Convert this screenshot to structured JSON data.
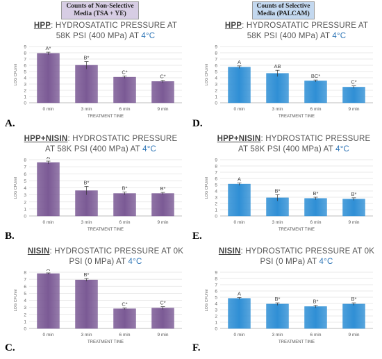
{
  "headers": {
    "left": "Counts of Non-Selective Media (TSA + YE)",
    "right": "Counts of Selective Media (PALCAM)"
  },
  "colors": {
    "purple": "#7b5a95",
    "blue": "#2f8fd5"
  },
  "chart_data": [
    {
      "type": "bar",
      "panel_label": "A.",
      "title_bold": "HPP",
      "title_rest": ": HYDROSATATIC PRESSURE AT 58K PSI (400 MPa) AT",
      "title_temp": "4°C",
      "categories": [
        "0 min",
        "3 min",
        "6 min",
        "9 min"
      ],
      "values": [
        7.9,
        6.0,
        4.1,
        3.4
      ],
      "errors": [
        0.2,
        0.6,
        0.2,
        0.2
      ],
      "bar_labels": [
        "A*",
        "B*",
        "C*",
        "C*"
      ],
      "xlabel": "TREATMENT TIME",
      "ylabel": "LOG CFU/ml",
      "ylim": [
        0,
        9
      ],
      "color": "#7b5a95"
    },
    {
      "type": "bar",
      "panel_label": "D.",
      "title_bold": "HPP",
      "title_rest": ": HYDROSATATIC PRESSURE AT 58K PSI (400 MPa) AT",
      "title_temp": "4°C",
      "categories": [
        "0 min",
        "3 min",
        "6 min",
        "9 min"
      ],
      "values": [
        5.7,
        4.7,
        3.5,
        2.5
      ],
      "errors": [
        0.2,
        0.5,
        0.15,
        0.2
      ],
      "bar_labels": [
        "A",
        "AB",
        "BC*",
        "C*"
      ],
      "xlabel": "TREATMENT TIME",
      "ylabel": "LOG CFU/ml",
      "ylim": [
        0,
        9
      ],
      "color": "#2f8fd5"
    },
    {
      "type": "bar",
      "panel_label": "B.",
      "title_bold": "HPP+NISIN",
      "title_rest": ": HYDROSTATIC PRESSURE AT 58K PSI (400 MPa) AT",
      "title_temp": "4°C",
      "categories": [
        "0 min",
        "3 min",
        "6 min",
        "9 min"
      ],
      "values": [
        7.6,
        3.6,
        3.2,
        3.2
      ],
      "errors": [
        0.2,
        0.6,
        0.2,
        0.15
      ],
      "bar_labels": [
        "A",
        "B*",
        "B*",
        "B*"
      ],
      "xlabel": "TREATMENT TIME",
      "ylabel": "LOG CFU/ml",
      "ylim": [
        0,
        8
      ],
      "color": "#7b5a95"
    },
    {
      "type": "bar",
      "panel_label": "E.",
      "title_bold": "HPP+NISIN",
      "title_rest": ": HYDROSTATIC PRESSURE AT 58K PSI (400 MPa) AT",
      "title_temp": "4°C",
      "categories": [
        "0 min",
        "3 min",
        "6 min",
        "9 min"
      ],
      "values": [
        5.1,
        2.9,
        2.8,
        2.7
      ],
      "errors": [
        0.2,
        0.5,
        0.2,
        0.2
      ],
      "bar_labels": [
        "A",
        "B*",
        "B*",
        "B*"
      ],
      "xlabel": "TREATMENT TIME",
      "ylabel": "LOG CFU/ml",
      "ylim": [
        0,
        9
      ],
      "color": "#2f8fd5"
    },
    {
      "type": "bar",
      "panel_label": "C.",
      "title_bold": "NISIN",
      "title_rest": ": HYDROSTATIC PRESSURE AT 0K PSI (0 MPa) AT",
      "title_temp": "4°C",
      "categories": [
        "0 min",
        "3 min",
        "6 min",
        "9 min"
      ],
      "values": [
        7.8,
        6.9,
        2.8,
        2.9
      ],
      "errors": [
        0.1,
        0.2,
        0.1,
        0.2
      ],
      "bar_labels": [
        "A",
        "B*",
        "C*",
        "C*"
      ],
      "xlabel": "TREATMENT TIME",
      "ylabel": "LOG CFU/ml",
      "ylim": [
        0,
        8
      ],
      "color": "#7b5a95"
    },
    {
      "type": "bar",
      "panel_label": "F.",
      "title_bold": "NISIN",
      "title_rest": ": HYDROSTATIC PRESSURE AT 0K PSI (0 MPa) AT",
      "title_temp": "4°C",
      "categories": [
        "0 min",
        "3 min",
        "6 min",
        "9 min"
      ],
      "values": [
        4.8,
        3.9,
        3.5,
        3.9
      ],
      "errors": [
        0.15,
        0.2,
        0.2,
        0.2
      ],
      "bar_labels": [
        "A",
        "B*",
        "B*",
        "B*"
      ],
      "xlabel": "TREATMENT TIME",
      "ylabel": "LOG CFU/ml",
      "ylim": [
        0,
        9
      ],
      "color": "#2f8fd5"
    }
  ]
}
